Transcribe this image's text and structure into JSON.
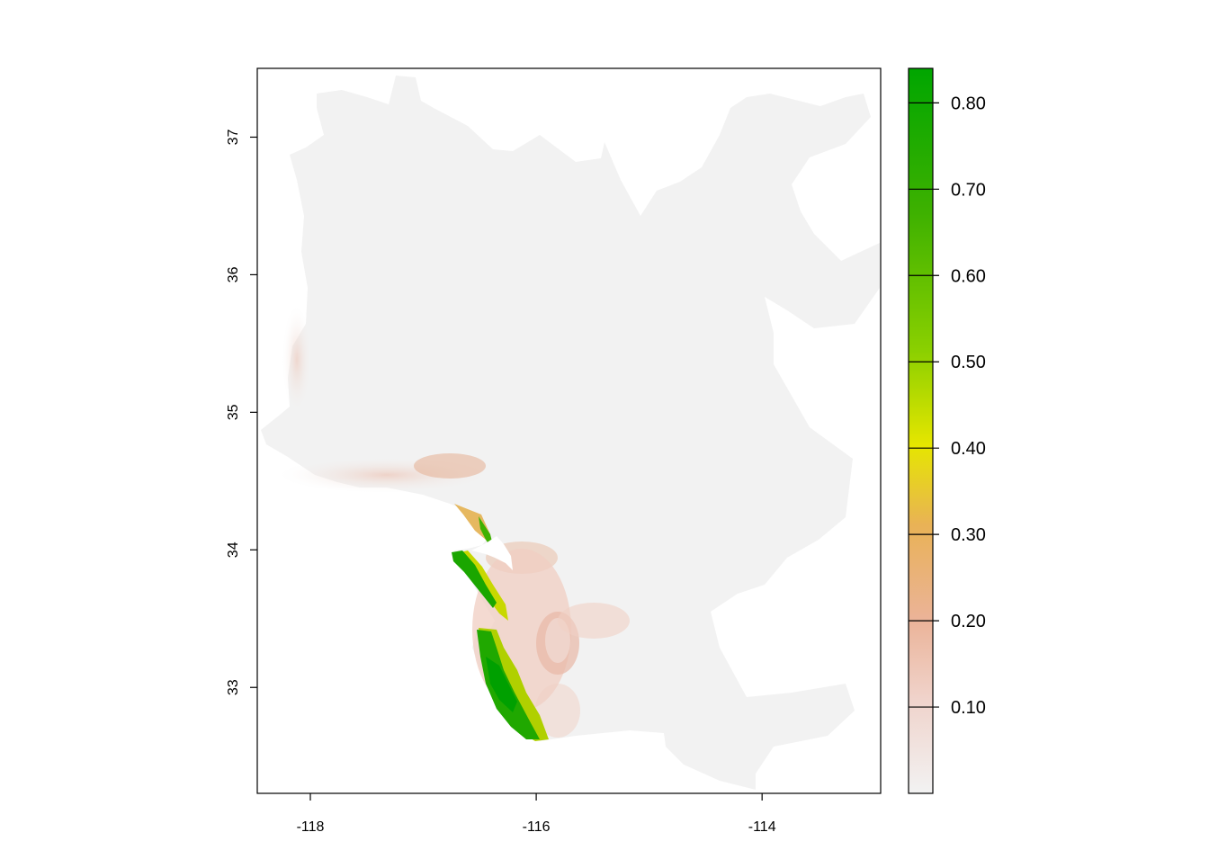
{
  "map": {
    "x_ticks": [
      "-118",
      "-116",
      "-114"
    ],
    "x_tick_values": [
      -118,
      -116,
      -114
    ],
    "y_ticks": [
      "33",
      "34",
      "35",
      "36",
      "37"
    ],
    "y_tick_values": [
      33,
      34,
      35,
      36,
      37
    ],
    "x_range": [
      -118.47,
      -112.95
    ],
    "y_range": [
      32.23,
      37.5
    ],
    "background_color": "#f2f2f2"
  },
  "legend": {
    "labels": [
      "0.10",
      "0.20",
      "0.30",
      "0.40",
      "0.50",
      "0.60",
      "0.70",
      "0.80"
    ],
    "values": [
      0.1,
      0.2,
      0.3,
      0.4,
      0.5,
      0.6,
      0.7,
      0.8
    ],
    "range": [
      0.0,
      0.84
    ],
    "color_stops": [
      "#f2f2f2",
      "#ebb398",
      "#e9b256",
      "#e6e600",
      "#8bd000",
      "#3eb100",
      "#00a600"
    ]
  }
}
